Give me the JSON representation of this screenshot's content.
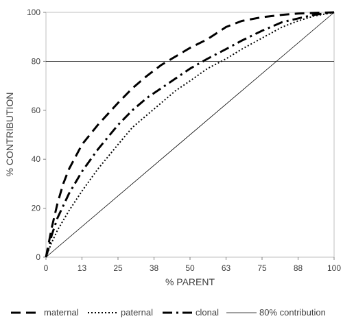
{
  "chart_data": {
    "type": "line",
    "title": "",
    "xlabel": "% PARENT",
    "ylabel": "% CONTRIBUTION",
    "xlim": [
      0,
      100
    ],
    "ylim": [
      0,
      100
    ],
    "x_ticks": [
      0,
      12.5,
      25,
      37.5,
      50,
      62.5,
      75,
      87.5,
      100
    ],
    "x_tick_labels": [
      "0",
      "13",
      "25",
      "38",
      "50",
      "63",
      "75",
      "88",
      "100"
    ],
    "y_ticks": [
      0,
      20,
      40,
      60,
      80,
      100
    ],
    "y_tick_labels": [
      "0",
      "20",
      "40",
      "60",
      "80",
      "100"
    ],
    "grid": false,
    "legend_position": "bottom",
    "series": [
      {
        "name": "maternal",
        "style": "long-dash",
        "color": "#000000",
        "x": [
          0,
          1,
          2,
          4,
          6,
          8,
          12.5,
          18,
          25,
          30,
          35,
          40,
          45,
          50,
          56,
          62.5,
          68,
          75,
          82,
          87.5,
          93,
          100
        ],
        "y": [
          0,
          6,
          12,
          22,
          30,
          36,
          46,
          54,
          63,
          69,
          74,
          78.5,
          82,
          85.5,
          89,
          94,
          96.5,
          98,
          99,
          99.5,
          99.8,
          100
        ]
      },
      {
        "name": "paternal",
        "style": "dotted",
        "color": "#000000",
        "x": [
          0,
          1,
          2,
          4,
          6,
          8,
          12.5,
          18,
          25,
          30,
          35,
          40,
          45,
          50,
          56,
          62.5,
          68,
          75,
          82,
          87.5,
          93,
          100
        ],
        "y": [
          0,
          3,
          6,
          11,
          15,
          19,
          27,
          36,
          46,
          53,
          58,
          63,
          68,
          72,
          77,
          81,
          85,
          89.5,
          94,
          96.5,
          98.5,
          100
        ]
      },
      {
        "name": "clonal",
        "style": "dash-dot",
        "color": "#000000",
        "x": [
          0,
          1,
          2,
          4,
          6,
          8,
          12.5,
          18,
          25,
          30,
          35,
          40,
          45,
          50,
          56,
          62.5,
          68,
          75,
          82,
          87.5,
          93,
          100
        ],
        "y": [
          0,
          4,
          9,
          16,
          21,
          26,
          35,
          44,
          54,
          60,
          65,
          69,
          73,
          77,
          81,
          85,
          88.5,
          92.5,
          96,
          97.5,
          99,
          100
        ]
      },
      {
        "name": "80% contribution",
        "style": "thin-solid",
        "color": "#000000",
        "x": [
          0,
          100
        ],
        "y": [
          0,
          100
        ]
      }
    ],
    "reference_line": {
      "y": 80
    }
  }
}
